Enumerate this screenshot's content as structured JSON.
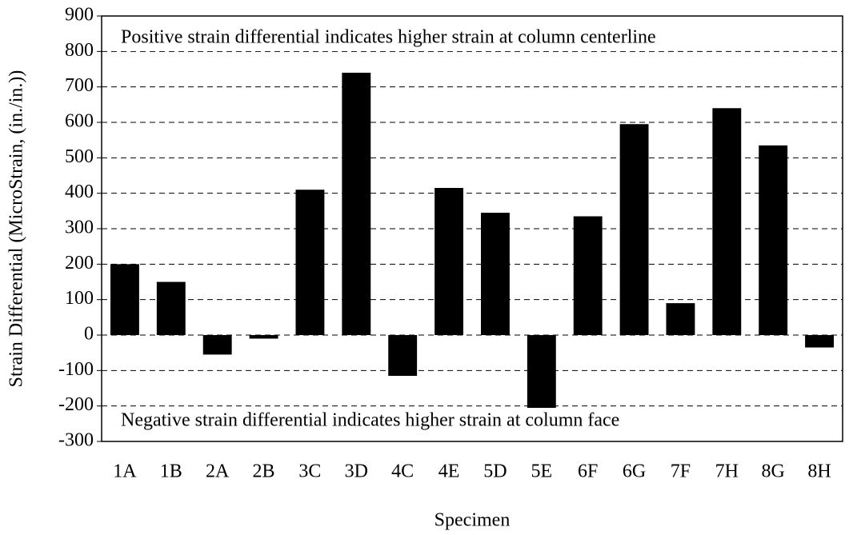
{
  "chart_data": {
    "type": "bar",
    "x_label": "Specimen",
    "y_label": "Strain Differential (MicroStrain, (in./in.))",
    "annotations": [
      "Positive strain differential indicates higher strain at column centerline",
      "Negative strain differential indicates higher strain at column face"
    ],
    "categories": [
      "1A",
      "1B",
      "2A",
      "2B",
      "3C",
      "3D",
      "4C",
      "4E",
      "5D",
      "5E",
      "6F",
      "6G",
      "7F",
      "7H",
      "8G",
      "8H"
    ],
    "values": [
      200,
      150,
      -55,
      -10,
      410,
      740,
      -115,
      415,
      345,
      -210,
      335,
      595,
      90,
      640,
      535,
      -35
    ],
    "color": "#000000",
    "ylim": [
      -300,
      900
    ],
    "yticks": [
      -300,
      -200,
      -100,
      0,
      100,
      200,
      300,
      400,
      500,
      600,
      700,
      800,
      900
    ],
    "grid": true
  }
}
